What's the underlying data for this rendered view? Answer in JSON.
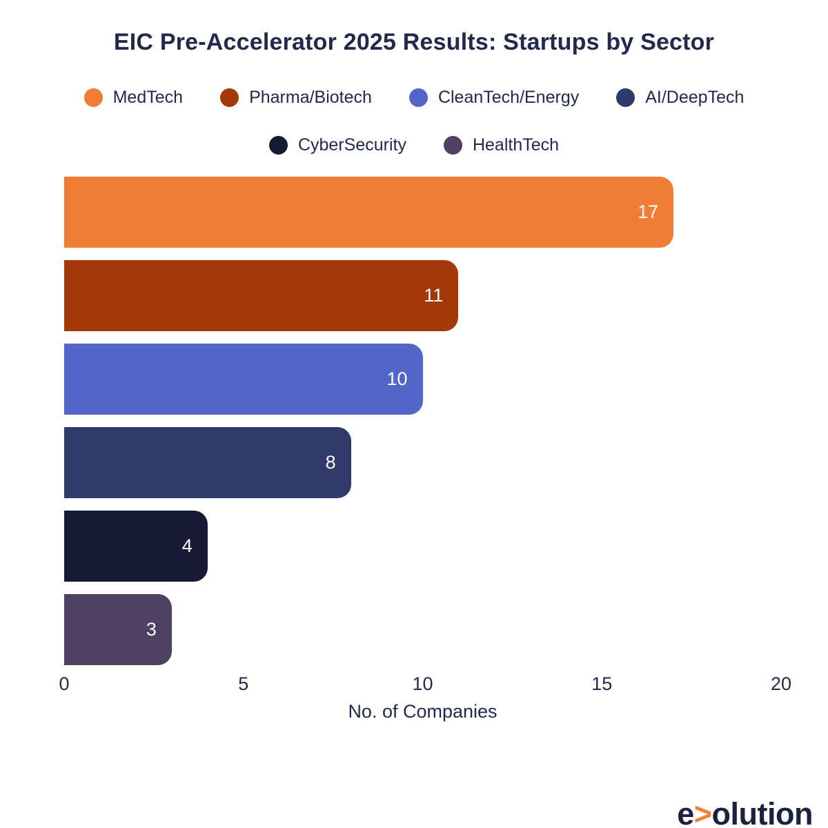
{
  "title": "EIC Pre-Accelerator 2025 Results: Startups by Sector",
  "legend": {
    "rows": [
      [
        {
          "label": "MedTech",
          "color": "#EE7D35"
        },
        {
          "label": "Pharma/Biotech",
          "color": "#A33908"
        },
        {
          "label": "CleanTech/Energy",
          "color": "#5366C8"
        },
        {
          "label": "AI/DeepTech",
          "color": "#2F396A"
        }
      ],
      [
        {
          "label": "CyberSecurity",
          "color": "#161A33"
        },
        {
          "label": "HealthTech",
          "color": "#4F4164"
        }
      ]
    ]
  },
  "chart_data": {
    "type": "bar",
    "orientation": "horizontal",
    "title": "EIC Pre-Accelerator 2025 Results: Startups by Sector",
    "categories": [
      "MedTech",
      "Pharma/Biotech",
      "CleanTech/Energy",
      "AI/DeepTech",
      "CyberSecurity",
      "HealthTech"
    ],
    "values": [
      17,
      11,
      10,
      8,
      4,
      3
    ],
    "bar_colors": [
      "#EE7D35",
      "#A33908",
      "#5366C8",
      "#2F396A",
      "#161A33",
      "#4F4164"
    ],
    "xlabel": "No. of Companies",
    "ylabel": "",
    "xlim": [
      0,
      20
    ],
    "xticks": [
      0,
      5,
      10,
      15,
      20
    ],
    "grid": false,
    "legend_position": "top",
    "value_labels": "inside-end"
  },
  "colors": {
    "text": "#212A4C",
    "background": "#ffffff",
    "bar_value_label": "#ffffff",
    "logo_text": "#1B2140",
    "logo_accent": "#F08232"
  },
  "logo": {
    "prefix": "e",
    "accent": ">",
    "suffix": "olution"
  }
}
